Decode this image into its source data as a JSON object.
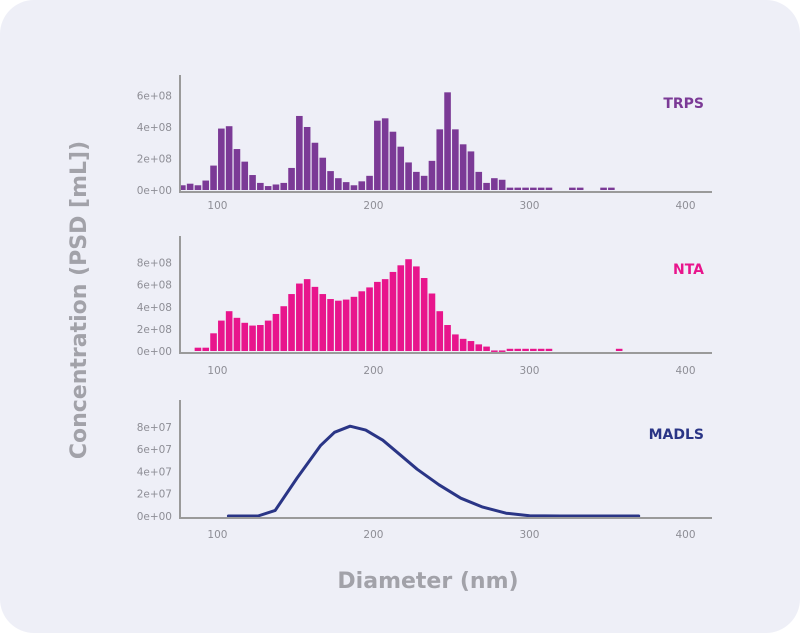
{
  "chart_data": [
    {
      "type": "bar",
      "series_label": "TRPS",
      "color": "#7b3a96",
      "x": [
        77.5,
        82.5,
        87.5,
        92.5,
        97.5,
        102.5,
        107.5,
        112.5,
        117.5,
        122.5,
        127.5,
        132.5,
        137.5,
        142.5,
        147.5,
        152.5,
        157.5,
        162.5,
        167.5,
        172.5,
        177.5,
        182.5,
        187.5,
        192.5,
        197.5,
        202.5,
        207.5,
        212.5,
        217.5,
        222.5,
        227.5,
        232.5,
        237.5,
        242.5,
        247.5,
        252.5,
        257.5,
        262.5,
        267.5,
        272.5,
        277.5,
        282.5,
        287.5,
        292.5,
        297.5,
        302.5,
        307.5,
        312.5,
        317.5,
        322.5,
        327.5,
        332.5,
        337.5,
        342.5,
        347.5,
        352.5
      ],
      "values": [
        30000000.0,
        40000000.0,
        30000000.0,
        60000000.0,
        155000000.0,
        390000000.0,
        405000000.0,
        260000000.0,
        180000000.0,
        95000000.0,
        45000000.0,
        25000000.0,
        35000000.0,
        45000000.0,
        140000000.0,
        470000000.0,
        400000000.0,
        300000000.0,
        205000000.0,
        120000000.0,
        75000000.0,
        50000000.0,
        30000000.0,
        55000000.0,
        90000000.0,
        440000000.0,
        455000000.0,
        370000000.0,
        275000000.0,
        175000000.0,
        115000000.0,
        90000000.0,
        185000000.0,
        385000000.0,
        620000000.0,
        385000000.0,
        290000000.0,
        245000000.0,
        115000000.0,
        45000000.0,
        75000000.0,
        65000000.0,
        15000000.0,
        15000000.0,
        15000000.0,
        15000000.0,
        15000000.0,
        15000000.0,
        0,
        0,
        15000000.0,
        15000000.0,
        0,
        0,
        15000000.0,
        15000000.0
      ],
      "xlim": [
        76,
        417
      ],
      "ylim": [
        0,
        730000000.0
      ],
      "x_ticks": [
        100,
        200,
        300,
        400
      ],
      "x_tick_labels": [
        "100",
        "200",
        "300",
        "400"
      ],
      "y_ticks": [
        0,
        200000000.0,
        400000000.0,
        600000000.0
      ],
      "y_tick_labels": [
        "0e+00",
        "2e+08",
        "4e+08",
        "6e+08"
      ],
      "grid": false
    },
    {
      "type": "bar",
      "series_label": "NTA",
      "color": "#e8158c",
      "x": [
        77.5,
        82.5,
        87.5,
        92.5,
        97.5,
        102.5,
        107.5,
        112.5,
        117.5,
        122.5,
        127.5,
        132.5,
        137.5,
        142.5,
        147.5,
        152.5,
        157.5,
        162.5,
        167.5,
        172.5,
        177.5,
        182.5,
        187.5,
        192.5,
        197.5,
        202.5,
        207.5,
        212.5,
        217.5,
        222.5,
        227.5,
        232.5,
        237.5,
        242.5,
        247.5,
        252.5,
        257.5,
        262.5,
        267.5,
        272.5,
        277.5,
        282.5,
        287.5,
        292.5,
        297.5,
        302.5,
        307.5,
        312.5,
        317.5,
        322.5,
        327.5,
        332.5,
        337.5,
        342.5,
        347.5,
        352.5,
        357.5
      ],
      "values": [
        0,
        0,
        30000000.0,
        30000000.0,
        160000000.0,
        275000000.0,
        360000000.0,
        300000000.0,
        255000000.0,
        230000000.0,
        235000000.0,
        275000000.0,
        335000000.0,
        405000000.0,
        515000000.0,
        610000000.0,
        650000000.0,
        580000000.0,
        515000000.0,
        470000000.0,
        455000000.0,
        465000000.0,
        490000000.0,
        540000000.0,
        575000000.0,
        625000000.0,
        650000000.0,
        715000000.0,
        775000000.0,
        830000000.0,
        765000000.0,
        660000000.0,
        520000000.0,
        360000000.0,
        235000000.0,
        150000000.0,
        110000000.0,
        90000000.0,
        60000000.0,
        40000000.0,
        5000000.0,
        5000000.0,
        20000000.0,
        20000000.0,
        20000000.0,
        20000000.0,
        20000000.0,
        20000000.0,
        0,
        0,
        0,
        0,
        0,
        0,
        0,
        0,
        20000000.0
      ],
      "xlim": [
        76,
        417
      ],
      "ylim": [
        0,
        1040000000.0
      ],
      "x_ticks": [
        100,
        200,
        300,
        400
      ],
      "x_tick_labels": [
        "100",
        "200",
        "300",
        "400"
      ],
      "y_ticks": [
        0,
        200000000.0,
        400000000.0,
        600000000.0,
        800000000.0
      ],
      "y_tick_labels": [
        "0e+00",
        "2e+08",
        "4e+08",
        "6e+08",
        "8e+08"
      ],
      "grid": false
    },
    {
      "type": "line",
      "series_label": "MADLS",
      "color": "#2a3586",
      "x": [
        107,
        126,
        137,
        151,
        166,
        175,
        185,
        195,
        206,
        217,
        228,
        242,
        256,
        270,
        285,
        300,
        320,
        370
      ],
      "values": [
        0,
        0,
        5000000.0,
        34000000.0,
        63000000.0,
        75000000.0,
        80500000.0,
        77000000.0,
        68000000.0,
        55000000.0,
        42000000.0,
        28000000.0,
        16000000.0,
        8000000.0,
        2500000.0,
        200000.0,
        0,
        0
      ],
      "xlim": [
        76,
        417
      ],
      "ylim": [
        0,
        104000000.0
      ],
      "x_ticks": [
        100,
        200,
        300,
        400
      ],
      "x_tick_labels": [
        "100",
        "200",
        "300",
        "400"
      ],
      "y_ticks": [
        0,
        20000000.0,
        40000000.0,
        60000000.0,
        80000000.0
      ],
      "y_tick_labels": [
        "0e+00",
        "2e+07",
        "4e+07",
        "6e+07",
        "8e+07"
      ],
      "grid": false
    }
  ],
  "xlabel": "Diameter (nm)",
  "ylabel": "Concentration (PSD [mL])"
}
